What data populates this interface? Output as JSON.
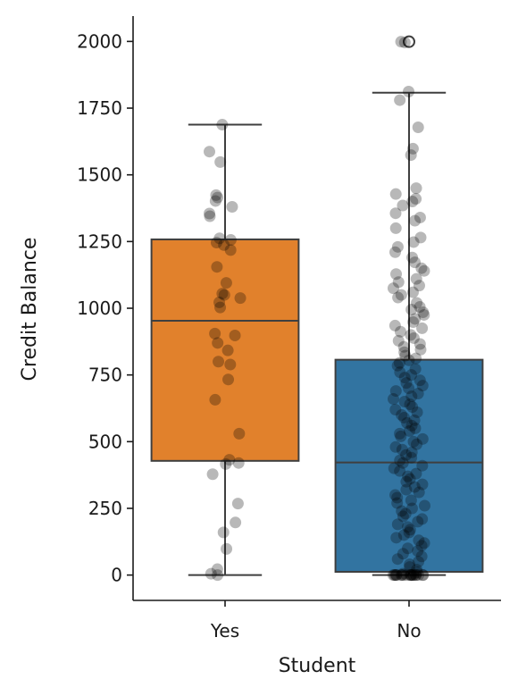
{
  "chart_data": {
    "type": "box",
    "xlabel": "Student",
    "ylabel": "Credit Balance",
    "categories": [
      "Yes",
      "No"
    ],
    "ylim": [
      -95,
      2095
    ],
    "yticks": [
      0,
      250,
      500,
      750,
      1000,
      1250,
      1500,
      1750,
      2000
    ],
    "colors": [
      "#e1812c",
      "#3274a1"
    ],
    "boxes": [
      {
        "category": "Yes",
        "whisker_low": 0,
        "q1": 428,
        "median": 953,
        "q3": 1258,
        "whisker_high": 1688,
        "outliers": [],
        "points": [
          1688,
          1587,
          1548,
          1424,
          1415,
          1402,
          1380,
          1355,
          1345,
          1262,
          1256,
          1246,
          1237,
          1218,
          1155,
          1095,
          1055,
          1050,
          1038,
          1022,
          1003,
          905,
          898,
          870,
          842,
          800,
          789,
          733,
          657,
          530,
          432,
          420,
          416,
          378,
          268,
          197,
          160,
          98,
          22,
          5,
          0
        ]
      },
      {
        "category": "No",
        "whisker_low": 0,
        "q1": 12,
        "median": 422,
        "q3": 807,
        "whisker_high": 1808,
        "outliers": [
          1999
        ],
        "points": [
          1999,
          1996,
          1812,
          1780,
          1678,
          1598,
          1574,
          1450,
          1428,
          1410,
          1400,
          1385,
          1356,
          1340,
          1328,
          1300,
          1265,
          1248,
          1230,
          1210,
          1190,
          1172,
          1150,
          1140,
          1128,
          1110,
          1098,
          1085,
          1075,
          1060,
          1050,
          1040,
          1020,
          1005,
          995,
          985,
          975,
          960,
          948,
          935,
          925,
          912,
          900,
          888,
          878,
          866,
          855,
          845,
          835,
          822,
          812,
          805,
          795,
          785,
          772,
          760,
          750,
          740,
          730,
          720,
          710,
          700,
          690,
          680,
          670,
          660,
          650,
          640,
          630,
          620,
          610,
          600,
          590,
          580,
          570,
          560,
          550,
          540,
          530,
          520,
          510,
          500,
          490,
          480,
          470,
          460,
          450,
          440,
          430,
          420,
          410,
          400,
          390,
          380,
          370,
          360,
          350,
          340,
          330,
          320,
          310,
          300,
          290,
          280,
          270,
          260,
          250,
          240,
          230,
          220,
          210,
          200,
          190,
          180,
          170,
          160,
          150,
          140,
          130,
          120,
          110,
          100,
          90,
          80,
          70,
          60,
          50,
          40,
          30,
          20,
          10,
          5,
          0,
          0,
          0,
          0,
          0,
          0,
          0,
          0,
          0,
          0,
          0,
          0,
          0,
          0,
          0,
          0,
          0,
          0,
          0,
          0
        ]
      }
    ]
  }
}
